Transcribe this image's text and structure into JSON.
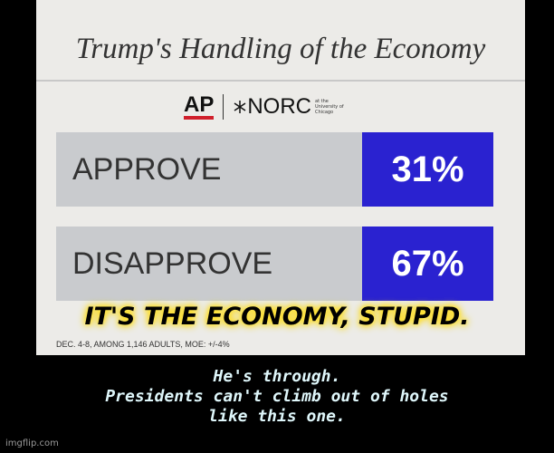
{
  "header": {
    "title": "Trump's Handling of the Economy"
  },
  "logos": {
    "ap": "AP",
    "norc": "NORC",
    "norc_sub": [
      "at the",
      "University of",
      "Chicago"
    ]
  },
  "rows": [
    {
      "label": "APPROVE",
      "value": "31%"
    },
    {
      "label": "DISAPPROVE",
      "value": "67%"
    }
  ],
  "overlay": "IT'S THE ECONOMY, STUPID.",
  "footnote": "DEC. 4-8, AMONG 1,146 ADULTS, MOE: +/-4%",
  "caption": [
    "He's through.",
    "Presidents can't climb out of holes",
    "like this one."
  ],
  "watermark": "imgflip.com"
}
